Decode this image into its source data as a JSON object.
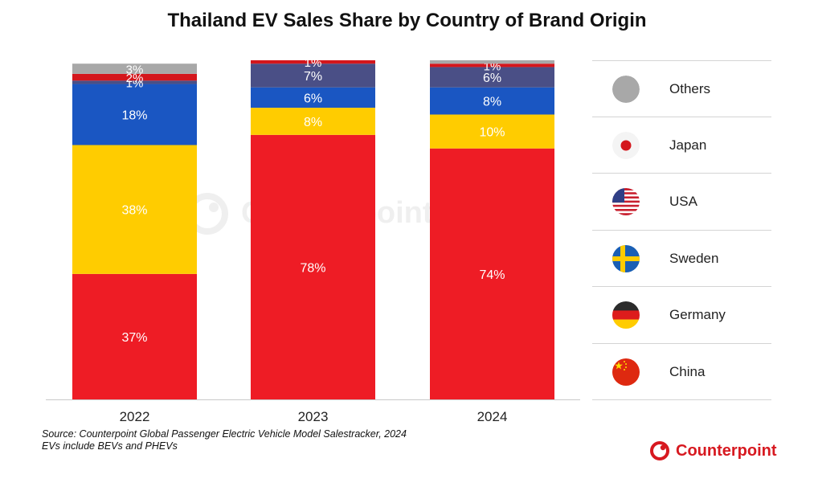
{
  "header": {
    "title": "Thailand EV Sales Share by Country of Brand Origin"
  },
  "chart_data": {
    "type": "bar",
    "stacked": true,
    "title": "Thailand EV Sales Share by Country of Brand Origin",
    "categories": [
      "2022",
      "2023",
      "2024"
    ],
    "ylim": [
      0,
      100
    ],
    "grid": false,
    "legend_placement": "right",
    "series": [
      {
        "name": "China",
        "color": "#ee1c25",
        "values": [
          37,
          78,
          74
        ],
        "labels": [
          "37%",
          "78%",
          "74%"
        ]
      },
      {
        "name": "Germany",
        "color": "#ffcc00",
        "values": [
          38,
          8,
          10
        ],
        "labels": [
          "38%",
          "8%",
          "10%"
        ]
      },
      {
        "name": "Sweden",
        "color": "#1a56c2",
        "values": [
          18,
          6,
          8
        ],
        "labels": [
          "18%",
          "6%",
          "8%"
        ]
      },
      {
        "name": "USA",
        "color": "#4a4f86",
        "values": [
          1,
          7,
          6
        ],
        "labels": [
          "1%",
          "7%",
          "6%"
        ]
      },
      {
        "name": "Japan",
        "color": "#d4161c",
        "values": [
          2,
          1,
          1
        ],
        "labels": [
          "2%",
          "1%",
          "1%"
        ]
      },
      {
        "name": "Others",
        "color": "#a8a8a8",
        "values": [
          3,
          0,
          1
        ],
        "labels": [
          "3%",
          "",
          ""
        ]
      }
    ]
  },
  "legend": [
    {
      "label": "Others",
      "icon": "others-circle-icon"
    },
    {
      "label": "Japan",
      "icon": "japan-flag-icon"
    },
    {
      "label": "USA",
      "icon": "usa-flag-icon"
    },
    {
      "label": "Sweden",
      "icon": "sweden-flag-icon"
    },
    {
      "label": "Germany",
      "icon": "germany-flag-icon"
    },
    {
      "label": "China",
      "icon": "china-flag-icon"
    }
  ],
  "footer": {
    "source_line1": "Source: Counterpoint Global Passenger Electric Vehicle Model Salestracker, 2024",
    "source_line2": "EVs include BEVs and PHEVs"
  },
  "brand": {
    "name": "Counterpoint",
    "color": "#d71920"
  },
  "watermark": {
    "text": "Counterpoint"
  }
}
